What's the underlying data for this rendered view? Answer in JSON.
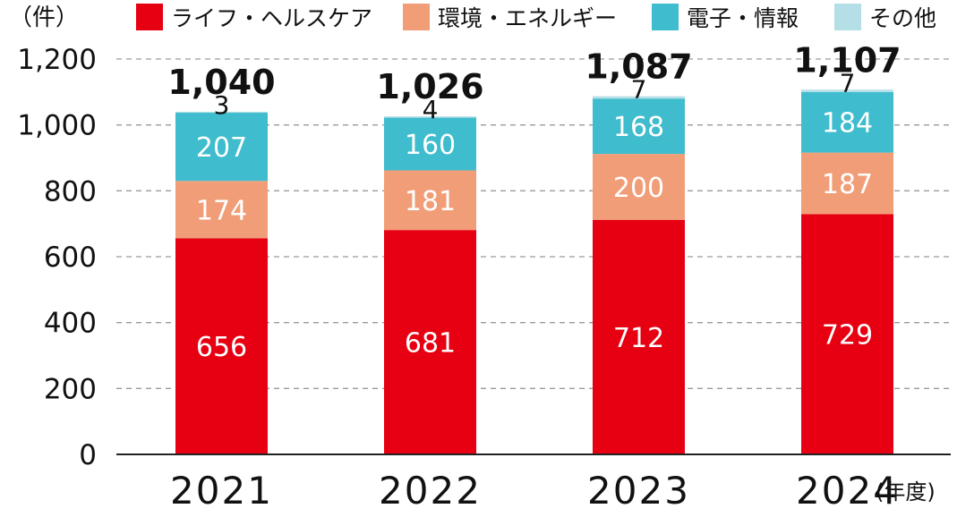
{
  "chart_data": {
    "type": "bar",
    "stacked": true,
    "unit_label": "（件）",
    "x_unit_label": "(年度)",
    "categories": [
      "2021",
      "2022",
      "2023",
      "2024"
    ],
    "ylim": [
      0,
      1200
    ],
    "yticks": [
      "0",
      "200",
      "400",
      "600",
      "800",
      "1,000",
      "1,200"
    ],
    "grid": true,
    "legend_position": "top",
    "series": [
      {
        "name": "ライフ・ヘルスケア",
        "color": "#e60012",
        "values": [
          656,
          681,
          712,
          729
        ]
      },
      {
        "name": "環境・エネルギー",
        "color": "#f19e78",
        "values": [
          174,
          181,
          200,
          187
        ]
      },
      {
        "name": "電子・情報",
        "color": "#3fbccd",
        "values": [
          207,
          160,
          168,
          184
        ]
      },
      {
        "name": "その他",
        "color": "#b5dfe6",
        "values": [
          3,
          4,
          7,
          7
        ]
      }
    ],
    "totals": [
      "1,040",
      "1,026",
      "1,087",
      "1,107"
    ]
  }
}
